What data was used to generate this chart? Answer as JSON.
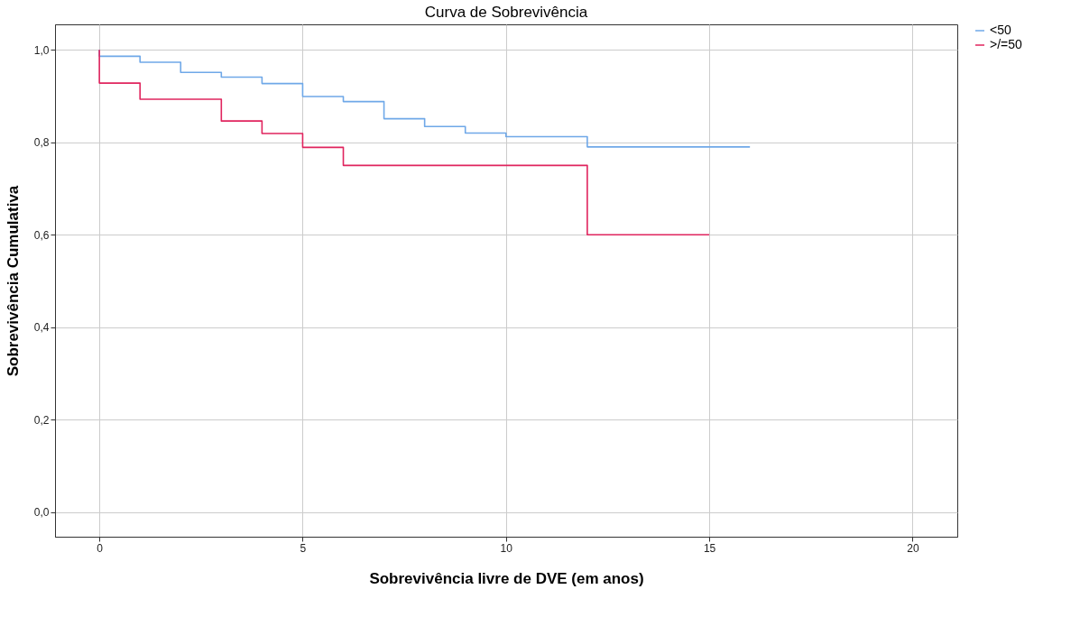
{
  "chart_data": {
    "type": "step",
    "title": "Curva de Sobrevivência",
    "xlabel": "Sobrevivência livre de DVE (em anos)",
    "ylabel": "Sobrevivência Cumulativa",
    "series": [
      {
        "name": "<50",
        "color": "#6fa8e8",
        "x": [
          0,
          0,
          1,
          2,
          3,
          4,
          5,
          6,
          7,
          8,
          9,
          10,
          12,
          16
        ],
        "values": [
          1.0,
          0.986,
          0.973,
          0.951,
          0.941,
          0.927,
          0.899,
          0.888,
          0.851,
          0.834,
          0.82,
          0.812,
          0.79,
          0.79
        ]
      },
      {
        "name": ">/=50",
        "color": "#e0245e",
        "x": [
          0,
          0,
          1,
          3,
          4,
          5,
          6,
          12,
          15
        ],
        "values": [
          1.0,
          0.928,
          0.893,
          0.846,
          0.819,
          0.789,
          0.75,
          0.6,
          0.6
        ]
      }
    ],
    "xlim": [
      -1.09,
      21.1
    ],
    "xticks": [
      0,
      5,
      10,
      15,
      20
    ],
    "ylim": [
      -0.053,
      1.055
    ],
    "yticks": [
      {
        "value": 0,
        "label": "0,0"
      },
      {
        "value": 0.2,
        "label": "0,2"
      },
      {
        "value": 0.4,
        "label": "0,4"
      },
      {
        "value": 0.6,
        "label": "0,6"
      },
      {
        "value": 0.8,
        "label": "0,8"
      },
      {
        "value": 1,
        "label": "1,0"
      }
    ],
    "grid": true,
    "legend": "right",
    "line_style": "solid",
    "marker": "none"
  }
}
